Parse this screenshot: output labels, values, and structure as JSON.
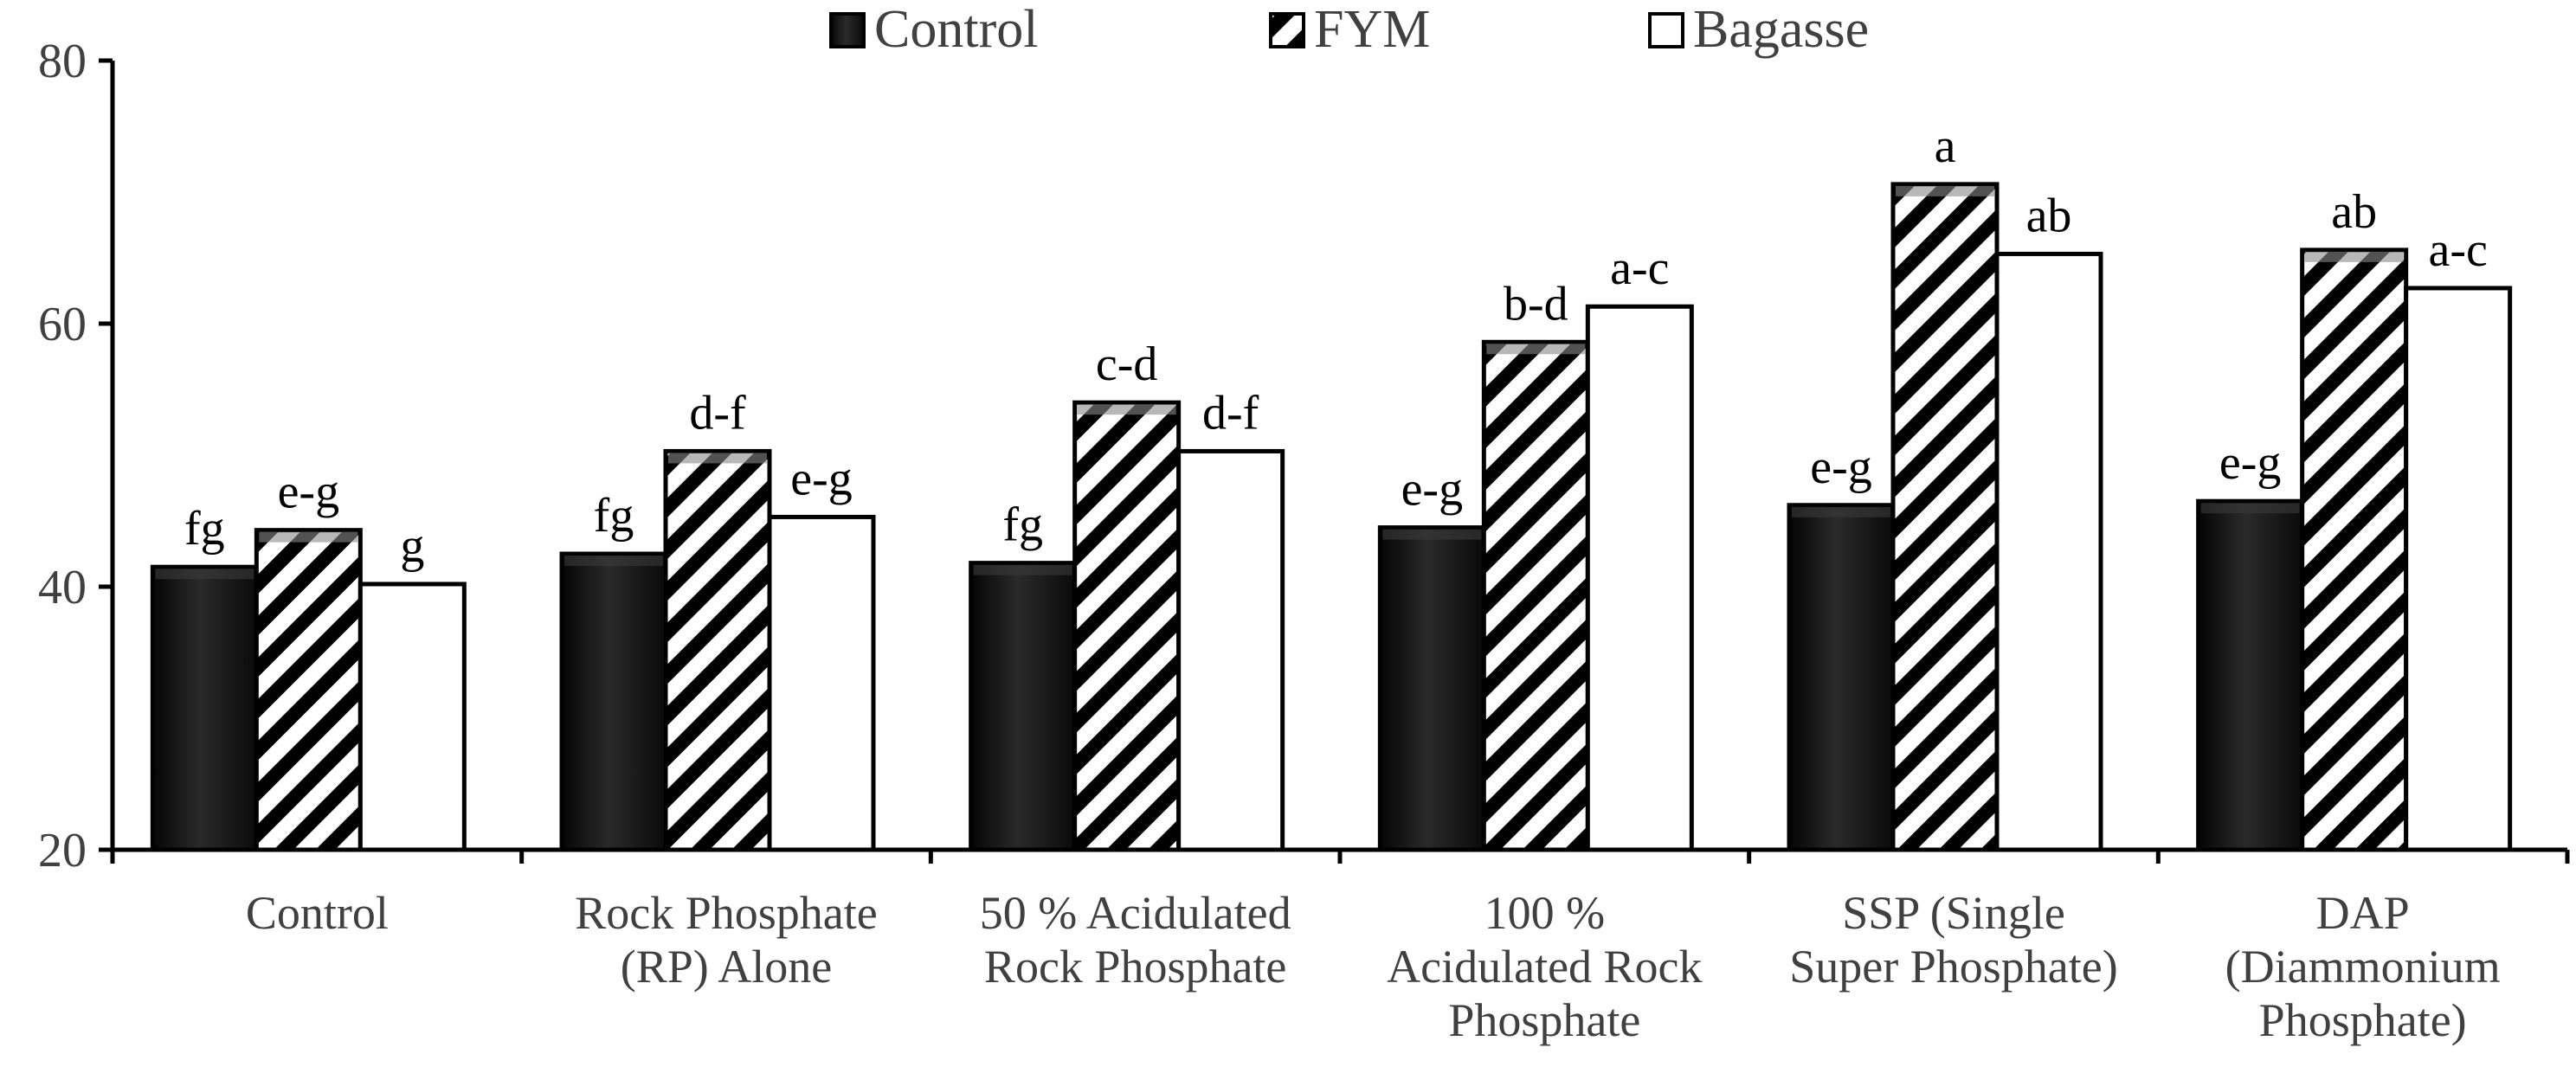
{
  "chart_data": {
    "type": "bar",
    "title": "",
    "xlabel": "",
    "ylabel": "",
    "ylim": [
      20,
      80
    ],
    "yticks": [
      20,
      40,
      60,
      80
    ],
    "grid": false,
    "legend_position": "top",
    "categories": [
      [
        "Control"
      ],
      [
        "Rock Phosphate",
        "(RP) Alone"
      ],
      [
        "50 % Acidulated",
        "Rock Phosphate"
      ],
      [
        "100 %",
        "Acidulated Rock",
        "Phosphate"
      ],
      [
        "SSP (Single",
        "Super Phosphate)"
      ],
      [
        "DAP",
        "(Diammonium",
        "Phosphate)"
      ]
    ],
    "series": [
      {
        "name": "Control",
        "style": "solid-dark",
        "values": [
          41.5,
          42.5,
          41.8,
          44.5,
          46.2,
          46.5
        ],
        "labels": [
          "fg",
          "fg",
          "fg",
          "e-g",
          "e-g",
          "e-g"
        ]
      },
      {
        "name": "FYM",
        "style": "diagonal-hatch",
        "values": [
          44.3,
          50.3,
          54.0,
          58.6,
          70.6,
          65.6
        ],
        "labels": [
          "e-g",
          "d-f",
          "c-d",
          "b-d",
          "a",
          "ab"
        ]
      },
      {
        "name": "Bagasse",
        "style": "white",
        "values": [
          40.2,
          45.3,
          50.3,
          61.3,
          65.3,
          62.7
        ],
        "labels": [
          "g",
          "e-g",
          "d-f",
          "a-c",
          "ab",
          "a-c"
        ]
      }
    ]
  },
  "colors": {
    "axis": "#000000",
    "text": "#404040",
    "control_fill": "#141414",
    "hatch": "#000000",
    "bagasse_fill": "#ffffff"
  }
}
